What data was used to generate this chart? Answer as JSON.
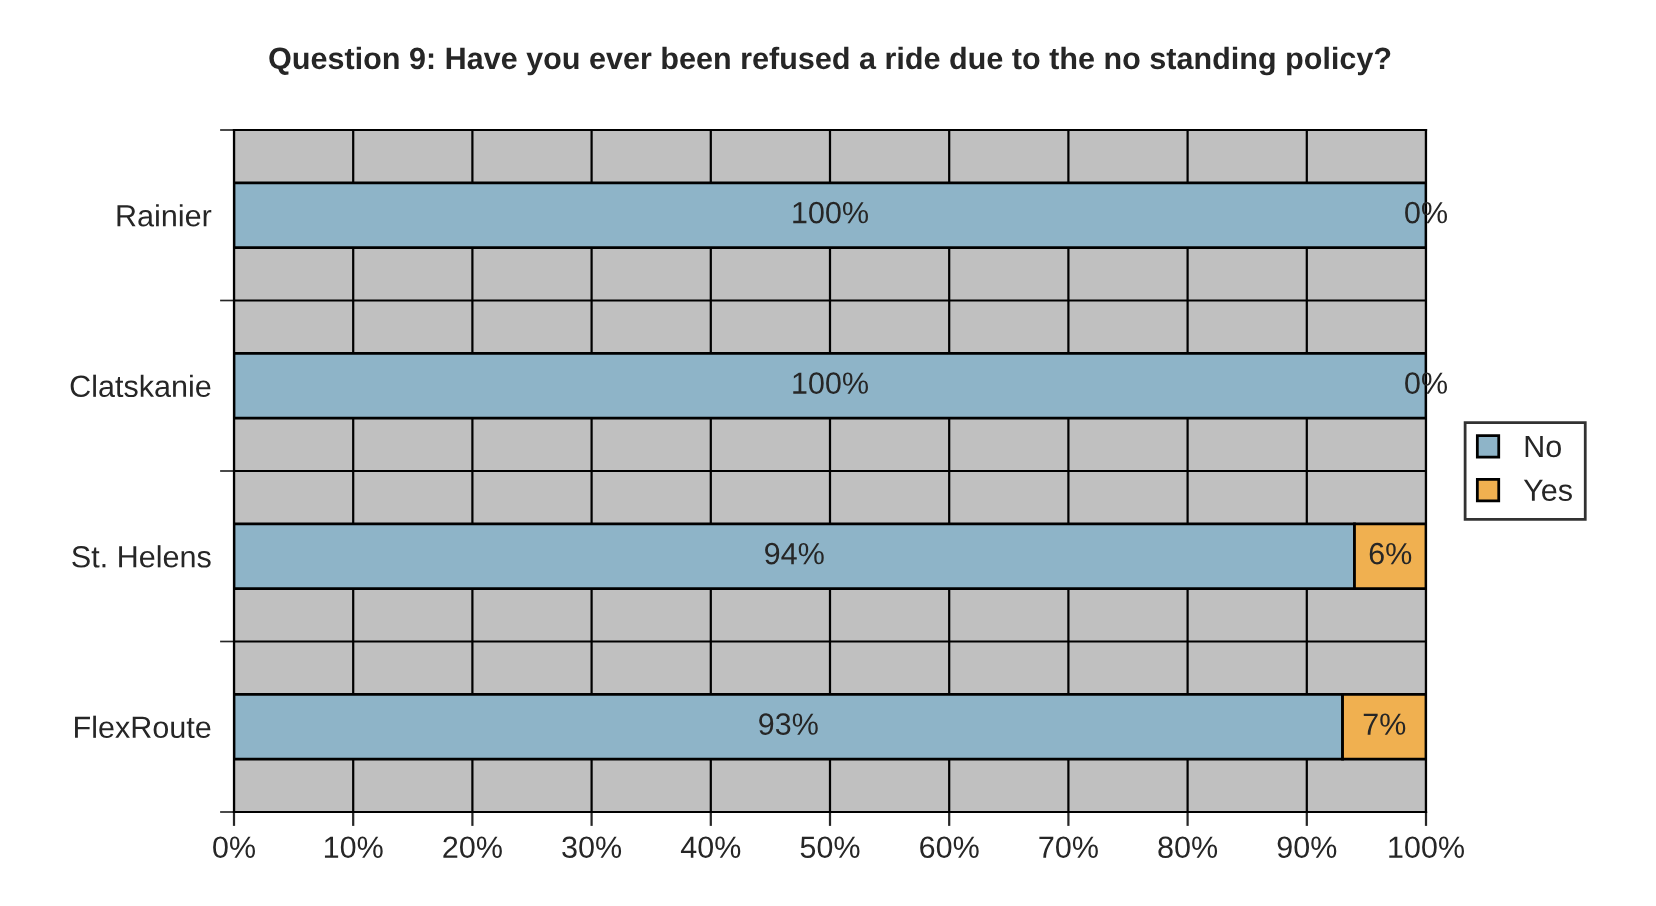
{
  "chart_data": {
    "type": "bar",
    "orientation": "horizontal",
    "stacked": true,
    "title": "Question 9: Have you ever been refused a ride due to the no standing policy?",
    "categories": [
      "Rainier",
      "Clatskanie",
      "St. Helens",
      "FlexRoute"
    ],
    "series": [
      {
        "name": "No",
        "color": "#8eb4c8",
        "values": [
          100,
          100,
          94,
          93
        ],
        "value_labels": [
          "100%",
          "100%",
          "94%",
          "93%"
        ]
      },
      {
        "name": "Yes",
        "color": "#f0b050",
        "values": [
          0,
          0,
          6,
          7
        ],
        "value_labels": [
          "0%",
          "0%",
          "6%",
          "7%"
        ]
      }
    ],
    "xlim": [
      0,
      100
    ],
    "xticks": [
      {
        "value": 0,
        "label": "0%"
      },
      {
        "value": 10,
        "label": "10%"
      },
      {
        "value": 20,
        "label": "20%"
      },
      {
        "value": 30,
        "label": "30%"
      },
      {
        "value": 40,
        "label": "40%"
      },
      {
        "value": 50,
        "label": "50%"
      },
      {
        "value": 60,
        "label": "60%"
      },
      {
        "value": 70,
        "label": "70%"
      },
      {
        "value": 80,
        "label": "80%"
      },
      {
        "value": 90,
        "label": "90%"
      },
      {
        "value": 100,
        "label": "100%"
      }
    ],
    "grid": true,
    "legend": "right"
  }
}
